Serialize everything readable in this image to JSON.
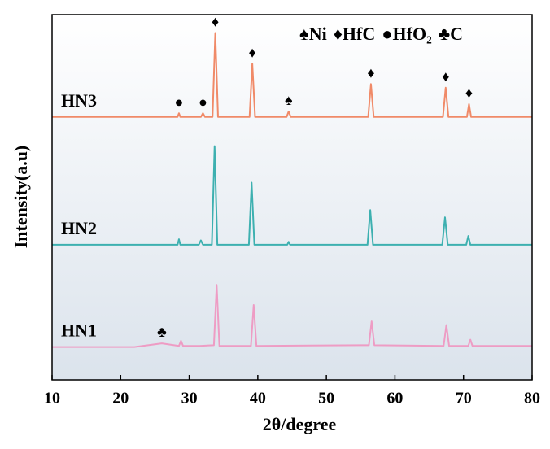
{
  "chart_data": {
    "type": "line",
    "x_label": "2θ/degree",
    "y_label": "Intensity(a.u)",
    "xlim": [
      10,
      80
    ],
    "xticks": [
      10,
      20,
      30,
      40,
      50,
      60,
      70,
      80
    ],
    "ylim": [
      0,
      100
    ],
    "legend": [
      "♠Ni",
      "♦HfC",
      "●HfO₂",
      "♣C"
    ],
    "series": [
      {
        "name": "HN3",
        "color": "#f08a68",
        "x": [
          10,
          28.3,
          28.5,
          28.7,
          31.7,
          32,
          32.3,
          33.4,
          33.8,
          34.2,
          38.8,
          39.2,
          39.6,
          44.2,
          44.5,
          44.8,
          56.1,
          56.5,
          56.9,
          67,
          67.4,
          67.8,
          70.5,
          70.8,
          71.1,
          80
        ],
        "values": [
          72,
          72,
          73,
          72,
          72,
          73,
          72,
          72,
          95,
          72,
          72,
          86.6,
          72,
          72,
          73.5,
          72,
          72,
          81,
          72,
          72,
          80,
          72,
          72,
          75.5,
          72,
          72
        ],
        "markers": [
          {
            "symbol": "●",
            "x": 28.5
          },
          {
            "symbol": "●",
            "x": 32
          },
          {
            "symbol": "♦",
            "x": 33.8
          },
          {
            "symbol": "♦",
            "x": 39.2
          },
          {
            "symbol": "♠",
            "x": 44.5
          },
          {
            "symbol": "♦",
            "x": 56.5
          },
          {
            "symbol": "♦",
            "x": 67.4
          },
          {
            "symbol": "♦",
            "x": 70.8
          }
        ]
      },
      {
        "name": "HN2",
        "color": "#3db0b0",
        "x": [
          10,
          28.3,
          28.5,
          28.7,
          31.4,
          31.7,
          32,
          33.3,
          33.7,
          34.1,
          38.7,
          39.1,
          39.5,
          44.3,
          44.5,
          44.7,
          56,
          56.4,
          56.8,
          66.9,
          67.3,
          67.7,
          70.4,
          70.7,
          71,
          80
        ],
        "values": [
          37,
          37,
          38.5,
          37,
          37,
          38.2,
          37,
          37,
          64,
          37,
          37,
          54,
          37,
          37,
          37.8,
          37,
          37,
          46.5,
          37,
          37,
          44.5,
          37,
          37,
          39.4,
          37,
          37
        ],
        "markers": []
      },
      {
        "name": "HN1",
        "color": "#ee9cc4",
        "x": [
          10,
          22,
          26,
          28.5,
          28.8,
          29.1,
          31.5,
          33.6,
          34,
          34.4,
          39,
          39.4,
          39.8,
          55,
          56.2,
          56.6,
          57,
          67.1,
          67.5,
          67.9,
          70.7,
          71,
          71.3,
          80
        ],
        "values": [
          9,
          9,
          10,
          9.3,
          10.7,
          9.3,
          9.3,
          9.5,
          26,
          9.3,
          9.3,
          20.5,
          9.3,
          9.5,
          9.5,
          16,
          9.5,
          9.3,
          15,
          9.3,
          9.3,
          11,
          9.3,
          9.3
        ],
        "markers": [
          {
            "symbol": "♣",
            "x": 26
          }
        ]
      }
    ]
  }
}
